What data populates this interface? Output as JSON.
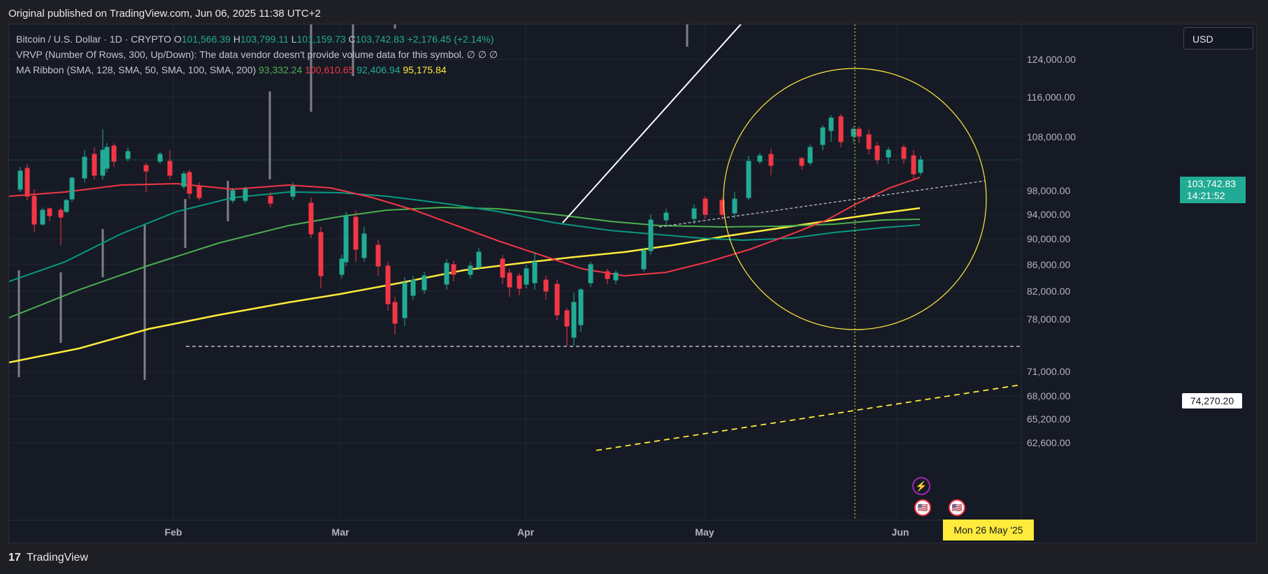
{
  "header": {
    "published": "Original published on TradingView.com, Jun 06, 2025 11:38 UTC+2"
  },
  "legend": {
    "symbol": "Bitcoin / U.S. Dollar · 1D · CRYPTO",
    "o_label": "O",
    "o": "101,566.39",
    "h_label": "H",
    "h": "103,799.11",
    "l_label": "L",
    "l": "101,159.73",
    "c_label": "C",
    "c": "103,742.83",
    "change": "+2,176.45 (+2.14%)",
    "vrvp": "VRVP (Number Of Rows, 300, Up/Down): The data vendor doesn't provide volume data for this symbol.",
    "vrvp_icons": "∅ ∅ ∅",
    "ma_ribbon": "MA Ribbon (SMA, 128, SMA, 50, SMA, 100, SMA, 200)",
    "ma_values": [
      "93,332.24",
      "100,610.65",
      "92,406.94",
      "95,175.84"
    ]
  },
  "currency": "USD",
  "price_axis": [
    "124,000.00",
    "116,000.00",
    "108,000.00",
    "98,000.00",
    "94,000.00",
    "90,000.00",
    "86,000.00",
    "82,000.00",
    "78,000.00",
    "71,000.00",
    "68,000.00",
    "65,200.00",
    "62,600.00"
  ],
  "current_price": {
    "value": "103,742.83",
    "countdown": "14:21:52"
  },
  "support_level": "74,270.20",
  "time_axis": [
    "Feb",
    "Mar",
    "Apr",
    "May",
    "Jun"
  ],
  "crosshair_date": "Mon 26 May '25",
  "footer": {
    "brand": "TradingView",
    "logo": "17"
  },
  "colors": {
    "up": "#22ab94",
    "down": "#f23645",
    "ma50": "#f23645",
    "ma100": "#089981",
    "ma128": "#4caf50",
    "ma200": "#ffeb3b",
    "annot": "#ffeb3b"
  },
  "chart_data": {
    "type": "candlestick",
    "ylim": [
      60000,
      130000
    ],
    "xrange": [
      "2025-01-01",
      "2025-06-06"
    ],
    "ohlc_trend": [
      {
        "date": "2025-01-04",
        "close": 98000
      },
      {
        "date": "2025-01-07",
        "close": 96000
      },
      {
        "date": "2025-01-10",
        "close": 94500
      },
      {
        "date": "2025-01-14",
        "close": 97000
      },
      {
        "date": "2025-01-17",
        "close": 104000
      },
      {
        "date": "2025-01-21",
        "close": 106000
      },
      {
        "date": "2025-01-24",
        "close": 104500
      },
      {
        "date": "2025-01-28",
        "close": 102000
      },
      {
        "date": "2025-02-01",
        "close": 100500
      },
      {
        "date": "2025-02-04",
        "close": 98000
      },
      {
        "date": "2025-02-08",
        "close": 96500
      },
      {
        "date": "2025-02-12",
        "close": 97000
      },
      {
        "date": "2025-02-16",
        "close": 96800
      },
      {
        "date": "2025-02-20",
        "close": 97500
      },
      {
        "date": "2025-02-24",
        "close": 91500
      },
      {
        "date": "2025-02-28",
        "close": 84500
      },
      {
        "date": "2025-03-02",
        "close": 94200
      },
      {
        "date": "2025-03-05",
        "close": 88500
      },
      {
        "date": "2025-03-09",
        "close": 80500
      },
      {
        "date": "2025-03-12",
        "close": 83500
      },
      {
        "date": "2025-03-16",
        "close": 83000
      },
      {
        "date": "2025-03-20",
        "close": 84500
      },
      {
        "date": "2025-03-24",
        "close": 87500
      },
      {
        "date": "2025-03-28",
        "close": 84000
      },
      {
        "date": "2025-04-02",
        "close": 84500
      },
      {
        "date": "2025-04-06",
        "close": 78500
      },
      {
        "date": "2025-04-09",
        "close": 82500
      },
      {
        "date": "2025-04-12",
        "close": 84800
      },
      {
        "date": "2025-04-16",
        "close": 84000
      },
      {
        "date": "2025-04-20",
        "close": 85000
      },
      {
        "date": "2025-04-22",
        "close": 93000
      },
      {
        "date": "2025-04-26",
        "close": 94500
      },
      {
        "date": "2025-05-01",
        "close": 96500
      },
      {
        "date": "2025-05-05",
        "close": 94500
      },
      {
        "date": "2025-05-08",
        "close": 103000
      },
      {
        "date": "2025-05-12",
        "close": 104000
      },
      {
        "date": "2025-05-16",
        "close": 103500
      },
      {
        "date": "2025-05-20",
        "close": 106500
      },
      {
        "date": "2025-05-22",
        "close": 111500
      },
      {
        "date": "2025-05-26",
        "close": 109500
      },
      {
        "date": "2025-05-30",
        "close": 104000
      },
      {
        "date": "2025-06-02",
        "close": 105500
      },
      {
        "date": "2025-06-05",
        "close": 101500
      },
      {
        "date": "2025-06-06",
        "close": 103742
      }
    ]
  }
}
